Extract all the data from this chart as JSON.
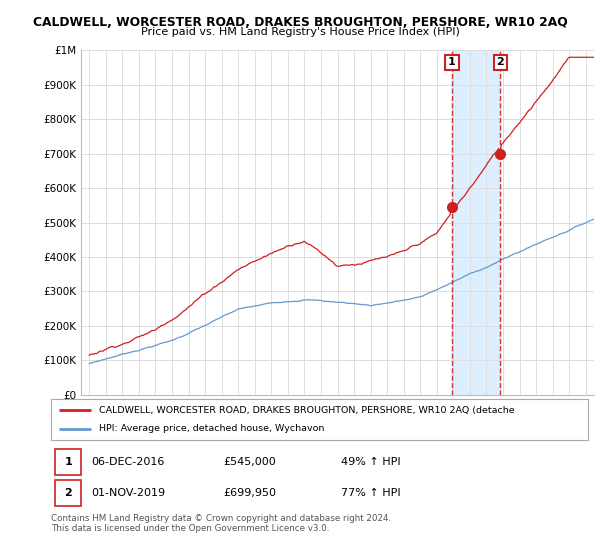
{
  "title": "CALDWELL, WORCESTER ROAD, DRAKES BROUGHTON, PERSHORE, WR10 2AQ",
  "subtitle": "Price paid vs. HM Land Registry's House Price Index (HPI)",
  "ylim": [
    0,
    1000000
  ],
  "yticks": [
    0,
    100000,
    200000,
    300000,
    400000,
    500000,
    600000,
    700000,
    800000,
    900000,
    1000000
  ],
  "ytick_labels": [
    "£0",
    "£100K",
    "£200K",
    "£300K",
    "£400K",
    "£500K",
    "£600K",
    "£700K",
    "£800K",
    "£900K",
    "£1M"
  ],
  "hpi_color": "#6699cc",
  "price_color": "#cc2222",
  "marker1_year": 2016.92,
  "marker1_y": 545000,
  "marker2_year": 2019.83,
  "marker2_y": 699950,
  "shade_color": "#ddeeff",
  "legend_price_label": "CALDWELL, WORCESTER ROAD, DRAKES BROUGHTON, PERSHORE, WR10 2AQ (detache",
  "legend_hpi_label": "HPI: Average price, detached house, Wychavon",
  "annotation1_label": "1",
  "annotation1_date": "06-DEC-2016",
  "annotation1_price": "£545,000",
  "annotation1_hpi": "49% ↑ HPI",
  "annotation2_label": "2",
  "annotation2_date": "01-NOV-2019",
  "annotation2_price": "£699,950",
  "annotation2_hpi": "77% ↑ HPI",
  "footer": "Contains HM Land Registry data © Crown copyright and database right 2024.\nThis data is licensed under the Open Government Licence v3.0.",
  "background_color": "#ffffff",
  "grid_color": "#dddddd",
  "xlim_left": 1994.5,
  "xlim_right": 2025.5
}
